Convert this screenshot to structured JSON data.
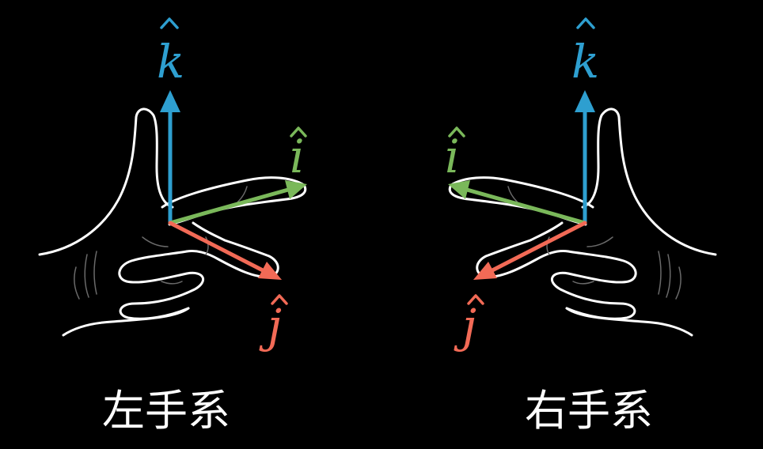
{
  "colors": {
    "k": "#2e9fd0",
    "i": "#7ab85a",
    "j": "#f26a56",
    "hand": "#ffffff",
    "background": "#000000"
  },
  "left_system": {
    "caption": "左手系",
    "k_label": "k",
    "i_label": "i",
    "j_label": "j"
  },
  "right_system": {
    "caption": "右手系",
    "k_label": "k",
    "i_label": "i",
    "j_label": "j"
  }
}
